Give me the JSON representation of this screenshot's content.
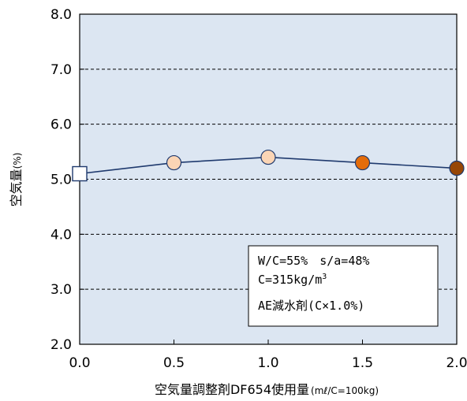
{
  "chart_data": {
    "type": "line",
    "title": "",
    "xlabel": "空気量調整剤DF654使用量",
    "xlabel_unit": "(mℓ/C=100kg)",
    "ylabel": "空気量",
    "ylabel_unit": "(%)",
    "xlim": [
      0.0,
      2.0
    ],
    "ylim": [
      2.0,
      8.0
    ],
    "xticks": [
      "0.0",
      "0.5",
      "1.0",
      "1.5",
      "2.0"
    ],
    "yticks": [
      "2.0",
      "3.0",
      "4.0",
      "5.0",
      "6.0",
      "7.0",
      "8.0"
    ],
    "grid": "horizontal dashed",
    "plot_background": "#dce6f2",
    "line_color": "#1f3a6e",
    "series": [
      {
        "x": [
          0.0,
          0.5,
          1.0,
          1.5,
          2.0
        ],
        "y": [
          5.1,
          5.3,
          5.4,
          5.3,
          5.2
        ],
        "markers": [
          "square",
          "circle",
          "circle",
          "circle",
          "circle"
        ],
        "marker_colors": [
          "#ffffff",
          "#fbd5b5",
          "#fbd5b5",
          "#e46c0a",
          "#974706"
        ]
      }
    ],
    "annotation": {
      "line1": "W/C=55%　s/a=48%",
      "line2": "C=315kg/m",
      "line2_sup": "3",
      "line3": "AE減水剤(C×1.0%)"
    }
  }
}
